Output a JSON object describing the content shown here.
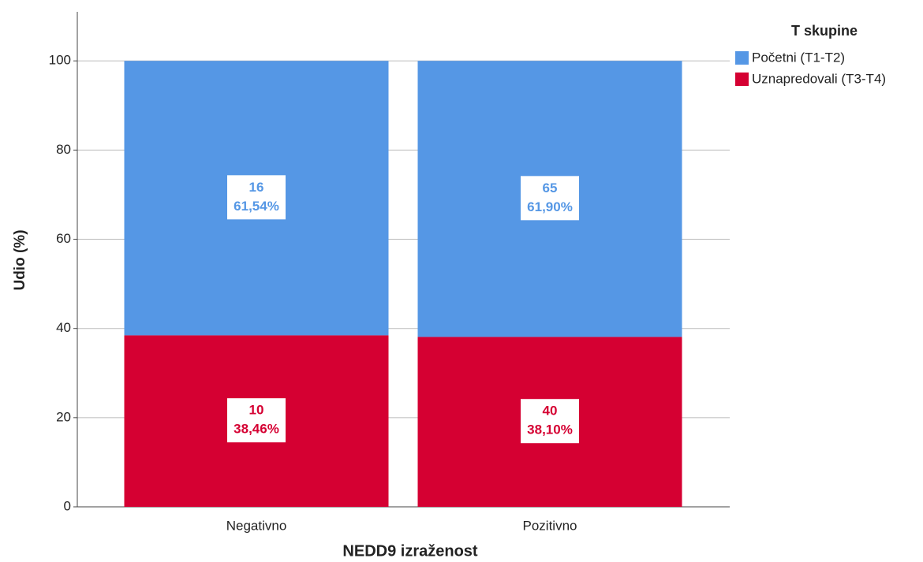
{
  "chart_data": {
    "type": "stacked_bar",
    "x_label": "NEDD9 izraženost",
    "y_label": "Udio (%)",
    "categories": [
      "Negativno",
      "Pozitivno"
    ],
    "legend_title": "T skupine",
    "legend_position": "right",
    "series": [
      {
        "name": "Početni (T1-T2)",
        "color": "#5597e5",
        "values": [
          61.54,
          61.9
        ],
        "value_labels": [
          "61,54%",
          "61,90%"
        ],
        "counts": [
          16,
          65
        ]
      },
      {
        "name": "Uznapredovali (T3-T4)",
        "color": "#d50032",
        "values": [
          38.46,
          38.1
        ],
        "value_labels": [
          "38,46%",
          "38,10%"
        ],
        "counts": [
          10,
          40
        ]
      }
    ],
    "ylim": [
      0,
      111
    ],
    "yticks": [
      0,
      20,
      40,
      60,
      80,
      100
    ],
    "grid": true
  }
}
